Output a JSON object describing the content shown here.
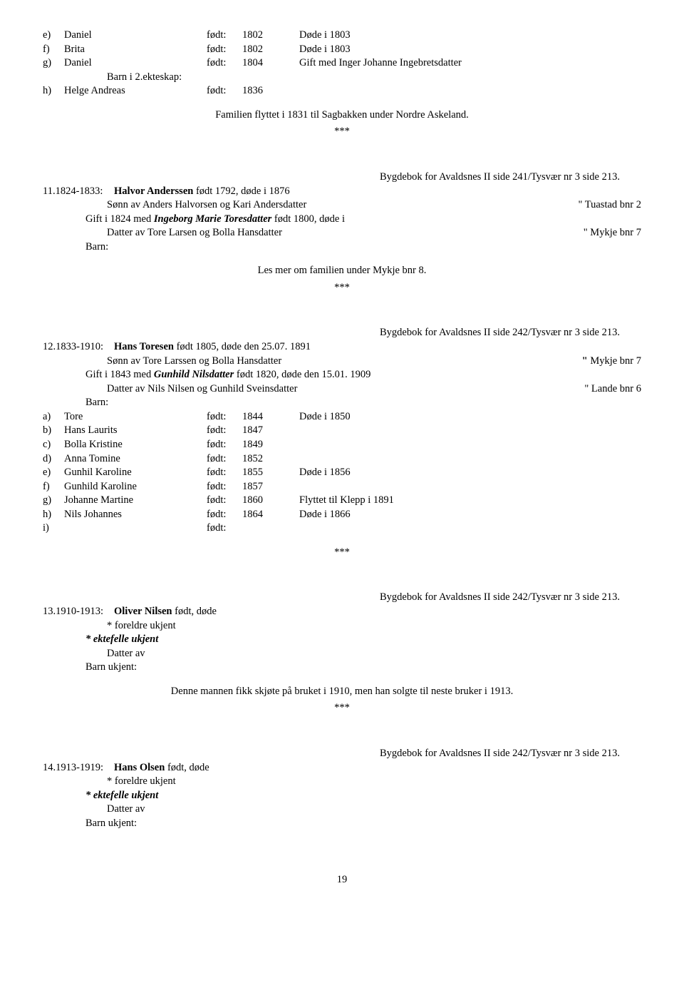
{
  "children_top": [
    {
      "letter": "e)",
      "name": "Daniel",
      "fodt": "født:",
      "year": "1802",
      "note": "Døde i 1803"
    },
    {
      "letter": "f)",
      "name": "Brita",
      "fodt": "født:",
      "year": "1802",
      "note": "Døde i 1803"
    },
    {
      "letter": "g)",
      "name": "Daniel",
      "fodt": "født:",
      "year": "1804",
      "note": "Gift med Inger Johanne Ingebretsdatter"
    }
  ],
  "barn_i2": "Barn i 2.ekteskap:",
  "child_h": {
    "letter": "h)",
    "name": "Helge Andreas",
    "fodt": "født:",
    "year": "1836",
    "note": ""
  },
  "fam_flyttet": "Familien flyttet i 1831 til Sagbakken under Nordre Askeland.",
  "stars": "***",
  "source_11": "Bygdebok for Avaldsnes II side 241/Tysvær nr 3 side 213.",
  "entry11": {
    "code": "11.1824-1833:",
    "title_a": "Halvor Anderssen",
    "title_b": " født 1792, døde i 1876",
    "line2_left": "Sønn av Anders Halvorsen og Kari Andersdatter",
    "line2_right": "\" Tuastad bnr 2",
    "line3_a": "Gift i 1824 med ",
    "line3_b": "Ingeborg Marie Toresdatter",
    "line3_c": " født 1800, døde i",
    "line4_left": "Datter av Tore Larsen og Bolla Hansdatter",
    "line4_right": "\" Mykje bnr 7",
    "barn": "Barn:",
    "lesmer": "Les mer om familien under Mykje bnr 8."
  },
  "source_12": "Bygdebok for Avaldsnes II side 242/Tysvær nr 3 side 213.",
  "entry12": {
    "code": "12.1833-1910:",
    "title_a": "Hans Toresen",
    "title_b": " født 1805, døde den 25.07. 1891",
    "line2_left": "Sønn av Tore Larssen og Bolla Hansdatter",
    "line2_right_a": "\" ",
    "line2_right_b": "Mykje bnr 7",
    "line3_a": "Gift i 1843 med ",
    "line3_b": "Gunhild Nilsdatter",
    "line3_c": " født 1820, døde den 15.01. 1909",
    "line4_left": "Datter av Nils Nilsen og Gunhild Sveinsdatter",
    "line4_right": "\" Lande bnr 6",
    "barn": "Barn:"
  },
  "children_12": [
    {
      "letter": "a)",
      "name": "Tore",
      "fodt": "født:",
      "year": "1844",
      "note": "Døde i 1850"
    },
    {
      "letter": "b)",
      "name": "Hans Laurits",
      "fodt": "født:",
      "year": "1847",
      "note": ""
    },
    {
      "letter": "c)",
      "name": "Bolla Kristine",
      "fodt": "født:",
      "year": "1849",
      "note": ""
    },
    {
      "letter": "d)",
      "name": "Anna Tomine",
      "fodt": "født:",
      "year": "1852",
      "note": ""
    },
    {
      "letter": "e)",
      "name": "Gunhil Karoline",
      "fodt": "født:",
      "year": "1855",
      "note": "Døde i 1856"
    },
    {
      "letter": "f)",
      "name": "Gunhild Karoline",
      "fodt": "født:",
      "year": "1857",
      "note": ""
    },
    {
      "letter": "g)",
      "name": "Johanne Martine",
      "fodt": "født:",
      "year": "1860",
      "note": "Flyttet til Klepp i 1891"
    },
    {
      "letter": "h)",
      "name": "Nils Johannes",
      "fodt": "født:",
      "year": "1864",
      "note": "Døde i 1866"
    },
    {
      "letter": "i)",
      "name": "",
      "fodt": "født:",
      "year": "",
      "note": ""
    }
  ],
  "source_13": "Bygdebok for Avaldsnes II side 242/Tysvær nr 3 side 213.",
  "entry13": {
    "code": "13.1910-1913:",
    "title_a": "Oliver Nilsen",
    "title_b": " født, døde",
    "foreldre": "* foreldre ukjent",
    "ektefelle": "* ektefelle ukjent",
    "datter": "Datter av",
    "barn": "Barn ukjent:",
    "denne": "Denne mannen fikk skjøte på bruket i 1910, men han solgte til neste bruker i 1913."
  },
  "source_14": "Bygdebok for Avaldsnes II side 242/Tysvær nr 3 side 213.",
  "entry14": {
    "code": "14.1913-1919:",
    "title_a": "Hans Olsen",
    "title_b": " født, døde",
    "foreldre": "* foreldre ukjent",
    "ektefelle": "* ektefelle ukjent",
    "datter": "Datter av",
    "barn": "Barn ukjent:"
  },
  "page_number": "19"
}
